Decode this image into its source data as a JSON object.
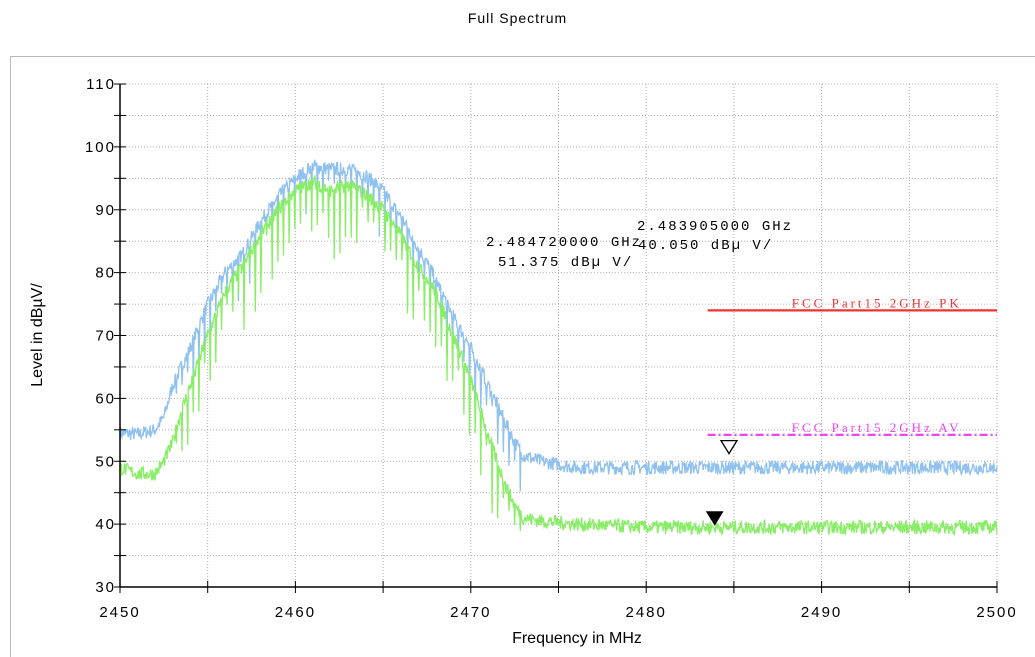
{
  "chart_data": {
    "type": "line",
    "title": "Full Spectrum",
    "xlabel": "Frequency in MHz",
    "ylabel": "Level in dBµV/",
    "xlim": [
      2450,
      2500
    ],
    "ylim": [
      30,
      110
    ],
    "x_ticks": [
      2450,
      2460,
      2470,
      2480,
      2490,
      2500
    ],
    "y_ticks": [
      30,
      40,
      50,
      60,
      70,
      80,
      90,
      100,
      110
    ],
    "grid": true,
    "series": [
      {
        "color": "#8ec0f0",
        "x": [
          2450,
          2451,
          2452,
          2452.5,
          2453,
          2453.5,
          2454,
          2455,
          2456,
          2457,
          2458,
          2459,
          2460,
          2461,
          2462,
          2463,
          2464,
          2465,
          2466,
          2467,
          2468,
          2469,
          2470,
          2471,
          2472,
          2472.5,
          2473,
          2474,
          2476,
          2480,
          2485,
          2490,
          2495,
          2500
        ],
        "values": [
          54.5,
          54.3,
          55,
          57,
          62,
          65,
          68,
          75,
          80,
          83,
          88,
          92,
          95,
          97,
          96.5,
          96.5,
          95.5,
          93,
          89,
          84,
          79,
          73,
          68,
          62,
          56,
          53,
          51,
          50,
          49,
          49,
          49,
          49,
          49,
          49
        ]
      },
      {
        "color": "#88ee66",
        "x": [
          2450,
          2451,
          2452,
          2452.5,
          2453,
          2453.5,
          2454,
          2455,
          2456,
          2457,
          2458,
          2459,
          2460,
          2461,
          2462,
          2463,
          2464,
          2465,
          2466,
          2467,
          2468,
          2469,
          2470,
          2471,
          2472,
          2472.5,
          2473,
          2474,
          2476,
          2480,
          2485,
          2490,
          2495,
          2500
        ],
        "values": [
          49,
          48,
          48,
          50,
          53,
          58,
          62,
          70,
          77,
          81,
          86,
          90,
          93,
          94.5,
          93,
          94,
          92.5,
          90,
          86,
          81,
          77,
          70,
          63,
          54,
          46,
          43,
          41,
          40.5,
          40,
          39.5,
          39.5,
          39.5,
          39.5,
          39.5
        ]
      }
    ],
    "limit_lines": [
      {
        "label": "FCC Part15 2GHz PK",
        "y": 74,
        "x_start": 2483.5,
        "x_end": 2500,
        "color": "#ee3333",
        "style": "solid"
      },
      {
        "label": "FCC Part15 2GHz AV",
        "y": 54.2,
        "x_start": 2483.5,
        "x_end": 2500,
        "color": "#ee44ee",
        "style": "dash-dot"
      }
    ],
    "markers": [
      {
        "x": 2484.72,
        "y": 51.375,
        "style": "hollow-triangle",
        "line1": "2.484720000 GHz",
        "line2": "51.375 dBµ V/"
      },
      {
        "x": 2483.905,
        "y": 40.05,
        "style": "filled-triangle",
        "line1": "2.483905000 GHz",
        "line2": "40.050 dBµ V/"
      }
    ]
  }
}
